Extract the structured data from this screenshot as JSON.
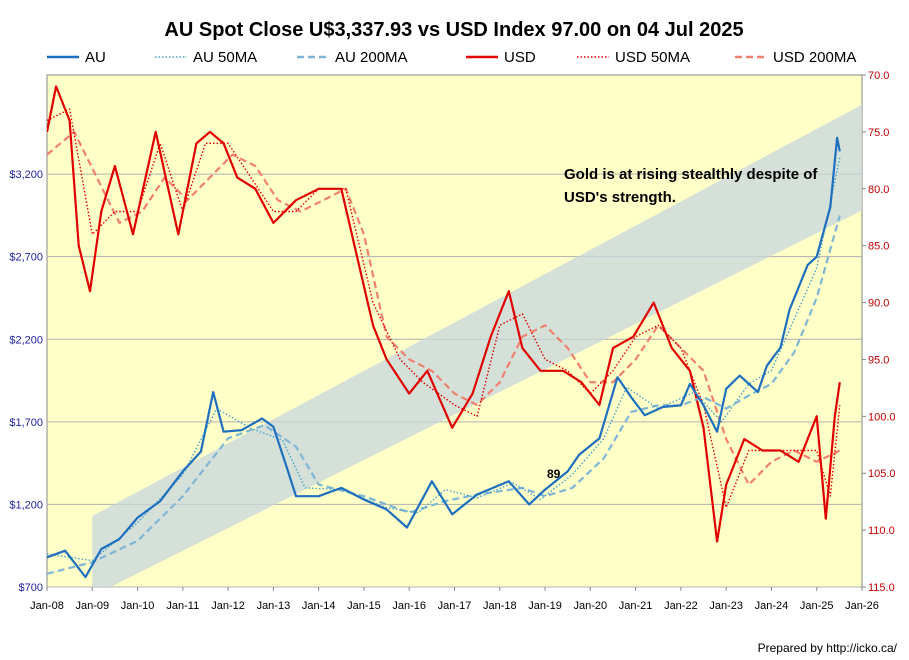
{
  "chart_data": {
    "type": "line",
    "title": "AU Spot Close U$3,337.93 vs USD Index 97.00 on 04 Jul 2025",
    "x_ticks": [
      "Jan-08",
      "Jan-09",
      "Jan-10",
      "Jan-11",
      "Jan-12",
      "Jan-13",
      "Jan-14",
      "Jan-15",
      "Jan-16",
      "Jan-17",
      "Jan-18",
      "Jan-19",
      "Jan-20",
      "Jan-21",
      "Jan-22",
      "Jan-23",
      "Jan-24",
      "Jan-25",
      "Jan-26"
    ],
    "xlim": [
      2008.0,
      2026.0
    ],
    "left_axis": {
      "ticks": [
        "$700",
        "$1,200",
        "$1,700",
        "$2,200",
        "$2,700",
        "$3,200"
      ],
      "tick_values": [
        700,
        1200,
        1700,
        2200,
        2700,
        3200
      ],
      "ylim": [
        700,
        3800
      ]
    },
    "right_axis": {
      "ticks": [
        "70.0",
        "75.0",
        "80.0",
        "85.0",
        "90.0",
        "95.0",
        "100.0",
        "105.0",
        "110.0",
        "115.0"
      ],
      "tick_values": [
        70,
        75,
        80,
        85,
        90,
        95,
        100,
        105,
        110,
        115
      ],
      "ylim": [
        70,
        115
      ],
      "inverted": true
    },
    "legend": [
      "AU",
      "AU 50MA",
      "AU 200MA",
      "USD",
      "USD 50MA",
      "USD 200MA"
    ],
    "legend_position": "top",
    "series": [
      {
        "name": "AU",
        "axis": "left",
        "color": "#1f6fbf",
        "style": "solid",
        "x": [
          2008.0,
          2008.4,
          2008.85,
          2009.2,
          2009.6,
          2010.0,
          2010.5,
          2011.0,
          2011.4,
          2011.67,
          2011.9,
          2012.3,
          2012.75,
          2013.0,
          2013.3,
          2013.5,
          2014.0,
          2014.5,
          2015.0,
          2015.5,
          2015.95,
          2016.5,
          2016.95,
          2017.5,
          2018.2,
          2018.65,
          2019.0,
          2019.5,
          2019.75,
          2020.2,
          2020.6,
          2020.9,
          2021.2,
          2021.6,
          2022.0,
          2022.2,
          2022.5,
          2022.8,
          2023.0,
          2023.3,
          2023.7,
          2023.9,
          2024.2,
          2024.4,
          2024.8,
          2025.0,
          2025.3,
          2025.45,
          2025.51
        ],
        "y": [
          880,
          920,
          760,
          930,
          990,
          1120,
          1220,
          1400,
          1520,
          1880,
          1640,
          1650,
          1720,
          1670,
          1420,
          1250,
          1250,
          1300,
          1230,
          1170,
          1060,
          1340,
          1140,
          1260,
          1340,
          1200,
          1290,
          1400,
          1500,
          1600,
          1970,
          1850,
          1740,
          1790,
          1800,
          1930,
          1800,
          1640,
          1900,
          1980,
          1880,
          2040,
          2150,
          2380,
          2650,
          2700,
          3000,
          3420,
          3338
        ]
      },
      {
        "name": "AU 50MA",
        "axis": "left",
        "color": "#4aa3c8",
        "style": "dotted",
        "x": [
          2008.0,
          2009.0,
          2010.0,
          2011.0,
          2011.75,
          2012.5,
          2013.2,
          2013.7,
          2014.5,
          2015.5,
          2016.2,
          2016.8,
          2017.5,
          2018.3,
          2018.9,
          2019.6,
          2020.3,
          2020.8,
          2021.5,
          2022.3,
          2022.9,
          2023.5,
          2024.0,
          2024.5,
          2025.0,
          2025.51
        ],
        "y": [
          900,
          860,
          1090,
          1380,
          1780,
          1660,
          1590,
          1300,
          1290,
          1180,
          1150,
          1290,
          1240,
          1330,
          1230,
          1380,
          1600,
          1910,
          1780,
          1880,
          1700,
          1930,
          2010,
          2320,
          2630,
          3300
        ]
      },
      {
        "name": "AU 200MA",
        "axis": "left",
        "color": "#7fb6d6",
        "style": "dashed",
        "x": [
          2008.0,
          2009.0,
          2010.0,
          2011.0,
          2012.0,
          2012.8,
          2013.5,
          2014.0,
          2015.0,
          2016.0,
          2016.8,
          2017.5,
          2018.5,
          2019.0,
          2019.6,
          2020.3,
          2020.9,
          2021.5,
          2022.0,
          2022.5,
          2023.0,
          2023.5,
          2024.0,
          2024.5,
          2025.0,
          2025.51
        ],
        "y": [
          780,
          850,
          980,
          1250,
          1600,
          1680,
          1550,
          1320,
          1250,
          1150,
          1220,
          1260,
          1300,
          1250,
          1300,
          1480,
          1760,
          1800,
          1800,
          1850,
          1780,
          1860,
          1930,
          2120,
          2450,
          2950
        ]
      },
      {
        "name": "USD",
        "axis": "right",
        "color": "#e00000",
        "style": "solid",
        "x": [
          2008.0,
          2008.2,
          2008.5,
          2008.7,
          2008.95,
          2009.2,
          2009.5,
          2009.9,
          2010.4,
          2010.9,
          2011.3,
          2011.6,
          2011.9,
          2012.2,
          2012.6,
          2013.0,
          2013.5,
          2014.0,
          2014.5,
          2015.2,
          2015.5,
          2016.0,
          2016.4,
          2016.95,
          2017.4,
          2017.8,
          2018.2,
          2018.5,
          2018.9,
          2019.4,
          2019.8,
          2020.2,
          2020.5,
          2020.95,
          2021.4,
          2021.8,
          2022.2,
          2022.5,
          2022.8,
          2023.0,
          2023.4,
          2023.8,
          2024.2,
          2024.6,
          2025.0,
          2025.2,
          2025.4,
          2025.51
        ],
        "y": [
          75,
          71,
          74,
          85,
          89,
          82,
          78,
          84,
          75,
          84,
          76,
          75,
          76,
          79,
          80,
          83,
          81,
          80,
          80,
          92,
          95,
          98,
          96,
          101,
          98,
          93,
          89,
          94,
          96,
          96,
          97,
          99,
          94,
          93,
          90,
          94,
          96,
          101,
          111,
          106,
          102,
          103,
          103,
          104,
          100,
          109,
          100,
          97
        ]
      },
      {
        "name": "USD 50MA",
        "axis": "right",
        "color": "#e00000",
        "style": "dotted",
        "x": [
          2008.0,
          2008.5,
          2009.0,
          2009.5,
          2010.0,
          2010.5,
          2011.0,
          2011.5,
          2012.0,
          2012.5,
          2013.0,
          2013.5,
          2014.0,
          2014.6,
          2015.2,
          2015.8,
          2016.3,
          2017.0,
          2017.5,
          2018.0,
          2018.5,
          2019.0,
          2019.5,
          2020.0,
          2020.5,
          2021.0,
          2021.5,
          2022.0,
          2022.5,
          2023.0,
          2023.5,
          2024.0,
          2024.5,
          2025.0,
          2025.3,
          2025.51
        ],
        "y": [
          74,
          73,
          84,
          82,
          82,
          76,
          82,
          76,
          76,
          79,
          82,
          82,
          80,
          80,
          90,
          95,
          97,
          99,
          100,
          92,
          91,
          95,
          96,
          98,
          96,
          93,
          92,
          94,
          99,
          108,
          103,
          103,
          103,
          103,
          107,
          99
        ]
      },
      {
        "name": "USD 200MA",
        "axis": "right",
        "color": "#f08070",
        "style": "dashed",
        "x": [
          2008.0,
          2008.6,
          2009.1,
          2009.6,
          2010.1,
          2010.6,
          2011.1,
          2011.6,
          2012.1,
          2012.6,
          2013.1,
          2013.6,
          2014.1,
          2014.6,
          2015.0,
          2015.5,
          2016.0,
          2016.5,
          2017.0,
          2017.5,
          2018.0,
          2018.5,
          2019.0,
          2019.5,
          2020.0,
          2020.5,
          2021.0,
          2021.5,
          2022.0,
          2022.5,
          2023.0,
          2023.5,
          2024.0,
          2024.5,
          2025.0,
          2025.51
        ],
        "y": [
          77,
          75,
          79,
          83,
          82,
          79,
          81,
          79,
          77,
          78,
          81,
          82,
          81,
          80,
          84,
          93,
          95,
          96,
          98,
          99,
          97,
          93,
          92,
          94,
          97,
          97,
          95,
          92,
          94,
          96,
          102,
          106,
          104,
          103,
          104,
          103
        ]
      }
    ],
    "annotations": [
      {
        "text": "Gold is at rising stealthly despite of",
        "color": "#000000"
      },
      {
        "text": "USD's strength.",
        "color": "#000000"
      },
      {
        "text": "89",
        "color": "#000000"
      }
    ],
    "trend_band": {
      "color": "#c7d6de"
    },
    "background_color": "#ffffc8",
    "grid": "horizontal",
    "footer": "Prepared by http://icko.ca/"
  }
}
